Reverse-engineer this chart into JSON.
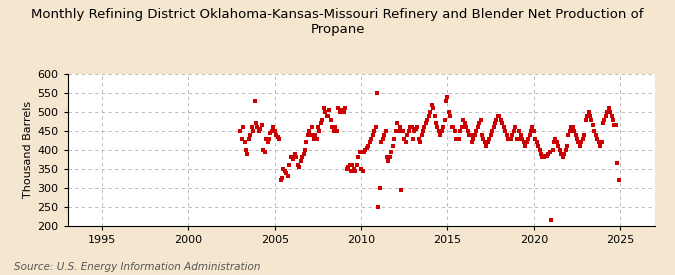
{
  "title": "Monthly Refining District Oklahoma-Kansas-Missouri Refinery and Blender Net Production of\nPropane",
  "ylabel": "Thousand Barrels",
  "source": "Source: U.S. Energy Information Administration",
  "background_color": "#f5e6d0",
  "plot_bg_color": "#ffffff",
  "marker_color": "#cc0000",
  "marker_size": 3,
  "xlim": [
    1993,
    2027
  ],
  "ylim": [
    200,
    600
  ],
  "yticks": [
    200,
    250,
    300,
    350,
    400,
    450,
    500,
    550,
    600
  ],
  "xticks": [
    1995,
    2000,
    2005,
    2010,
    2015,
    2020,
    2025
  ],
  "title_fontsize": 9.5,
  "ylabel_fontsize": 8,
  "tick_fontsize": 8,
  "data": {
    "dates": [
      2003.0,
      2003.083,
      2003.167,
      2003.25,
      2003.333,
      2003.417,
      2003.5,
      2003.583,
      2003.667,
      2003.75,
      2003.833,
      2003.917,
      2004.0,
      2004.083,
      2004.167,
      2004.25,
      2004.333,
      2004.417,
      2004.5,
      2004.583,
      2004.667,
      2004.75,
      2004.833,
      2004.917,
      2005.0,
      2005.083,
      2005.167,
      2005.25,
      2005.333,
      2005.417,
      2005.5,
      2005.583,
      2005.667,
      2005.75,
      2005.833,
      2005.917,
      2006.0,
      2006.083,
      2006.167,
      2006.25,
      2006.333,
      2006.417,
      2006.5,
      2006.583,
      2006.667,
      2006.75,
      2006.833,
      2006.917,
      2007.0,
      2007.083,
      2007.167,
      2007.25,
      2007.333,
      2007.417,
      2007.5,
      2007.583,
      2007.667,
      2007.75,
      2007.833,
      2007.917,
      2008.0,
      2008.083,
      2008.167,
      2008.25,
      2008.333,
      2008.417,
      2008.5,
      2008.583,
      2008.667,
      2008.75,
      2008.833,
      2008.917,
      2009.0,
      2009.083,
      2009.167,
      2009.25,
      2009.333,
      2009.417,
      2009.5,
      2009.583,
      2009.667,
      2009.75,
      2009.833,
      2009.917,
      2010.0,
      2010.083,
      2010.167,
      2010.25,
      2010.333,
      2010.417,
      2010.5,
      2010.583,
      2010.667,
      2010.75,
      2010.833,
      2010.917,
      2011.0,
      2011.083,
      2011.167,
      2011.25,
      2011.333,
      2011.417,
      2011.5,
      2011.583,
      2011.667,
      2011.75,
      2011.833,
      2011.917,
      2012.0,
      2012.083,
      2012.167,
      2012.25,
      2012.333,
      2012.417,
      2012.5,
      2012.583,
      2012.667,
      2012.75,
      2012.833,
      2012.917,
      2013.0,
      2013.083,
      2013.167,
      2013.25,
      2013.333,
      2013.417,
      2013.5,
      2013.583,
      2013.667,
      2013.75,
      2013.833,
      2013.917,
      2014.0,
      2014.083,
      2014.167,
      2014.25,
      2014.333,
      2014.417,
      2014.5,
      2014.583,
      2014.667,
      2014.75,
      2014.833,
      2014.917,
      2015.0,
      2015.083,
      2015.167,
      2015.25,
      2015.333,
      2015.417,
      2015.5,
      2015.583,
      2015.667,
      2015.75,
      2015.833,
      2015.917,
      2016.0,
      2016.083,
      2016.167,
      2016.25,
      2016.333,
      2016.417,
      2016.5,
      2016.583,
      2016.667,
      2016.75,
      2016.833,
      2016.917,
      2017.0,
      2017.083,
      2017.167,
      2017.25,
      2017.333,
      2017.417,
      2017.5,
      2017.583,
      2017.667,
      2017.75,
      2017.833,
      2017.917,
      2018.0,
      2018.083,
      2018.167,
      2018.25,
      2018.333,
      2018.417,
      2018.5,
      2018.583,
      2018.667,
      2018.75,
      2018.833,
      2018.917,
      2019.0,
      2019.083,
      2019.167,
      2019.25,
      2019.333,
      2019.417,
      2019.5,
      2019.583,
      2019.667,
      2019.75,
      2019.833,
      2019.917,
      2020.0,
      2020.083,
      2020.167,
      2020.25,
      2020.333,
      2020.417,
      2020.5,
      2020.583,
      2020.667,
      2020.75,
      2020.833,
      2020.917,
      2021.0,
      2021.083,
      2021.167,
      2021.25,
      2021.333,
      2021.417,
      2021.5,
      2021.583,
      2021.667,
      2021.75,
      2021.833,
      2021.917,
      2022.0,
      2022.083,
      2022.167,
      2022.25,
      2022.333,
      2022.417,
      2022.5,
      2022.583,
      2022.667,
      2022.75,
      2022.833,
      2022.917,
      2023.0,
      2023.083,
      2023.167,
      2023.25,
      2023.333,
      2023.417,
      2023.5,
      2023.583,
      2023.667,
      2023.75,
      2023.833,
      2023.917,
      2024.0,
      2024.083,
      2024.167,
      2024.25,
      2024.333,
      2024.417,
      2024.5,
      2024.583,
      2024.667,
      2024.75,
      2024.833,
      2024.917
    ],
    "values": [
      450,
      430,
      460,
      420,
      400,
      390,
      430,
      440,
      460,
      450,
      530,
      470,
      460,
      450,
      455,
      465,
      400,
      395,
      430,
      420,
      430,
      445,
      450,
      460,
      450,
      440,
      435,
      430,
      320,
      325,
      350,
      345,
      340,
      330,
      360,
      380,
      380,
      375,
      390,
      380,
      360,
      355,
      370,
      380,
      390,
      400,
      420,
      440,
      450,
      440,
      460,
      430,
      440,
      430,
      460,
      450,
      470,
      480,
      510,
      500,
      490,
      490,
      505,
      480,
      460,
      450,
      460,
      450,
      510,
      500,
      505,
      505,
      500,
      510,
      350,
      355,
      360,
      345,
      360,
      350,
      345,
      360,
      380,
      395,
      350,
      345,
      395,
      400,
      405,
      410,
      420,
      430,
      440,
      450,
      460,
      550,
      250,
      300,
      420,
      430,
      440,
      450,
      380,
      370,
      380,
      395,
      410,
      430,
      450,
      470,
      450,
      460,
      295,
      450,
      430,
      420,
      440,
      450,
      460,
      460,
      430,
      450,
      455,
      460,
      430,
      420,
      440,
      450,
      460,
      470,
      480,
      490,
      500,
      520,
      510,
      490,
      470,
      460,
      450,
      440,
      450,
      460,
      480,
      530,
      540,
      500,
      490,
      460,
      460,
      450,
      430,
      430,
      430,
      450,
      460,
      480,
      470,
      460,
      450,
      440,
      440,
      420,
      430,
      440,
      450,
      460,
      470,
      480,
      440,
      430,
      420,
      410,
      420,
      430,
      440,
      450,
      460,
      470,
      480,
      490,
      490,
      480,
      470,
      460,
      450,
      440,
      430,
      430,
      430,
      440,
      450,
      460,
      430,
      430,
      450,
      440,
      430,
      420,
      410,
      420,
      430,
      440,
      450,
      460,
      450,
      430,
      420,
      410,
      400,
      390,
      380,
      380,
      385,
      385,
      390,
      395,
      215,
      400,
      420,
      430,
      420,
      410,
      400,
      390,
      380,
      390,
      400,
      410,
      440,
      450,
      460,
      460,
      450,
      440,
      430,
      420,
      410,
      420,
      430,
      440,
      480,
      490,
      500,
      490,
      480,
      465,
      450,
      440,
      430,
      420,
      410,
      420,
      470,
      480,
      490,
      500,
      510,
      500,
      490,
      480,
      465,
      465,
      365,
      320
    ]
  }
}
